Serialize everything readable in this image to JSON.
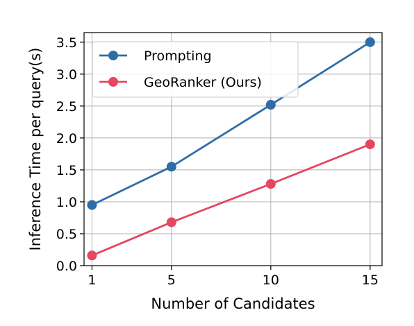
{
  "chart_data": {
    "type": "line",
    "xlabel": "Number of Candidates",
    "ylabel": "Inference Time per query(s)",
    "x": [
      1,
      5,
      10,
      15
    ],
    "xticks": [
      "1",
      "5",
      "10",
      "15"
    ],
    "yticks": [
      "0.0",
      "0.5",
      "1.0",
      "1.5",
      "2.0",
      "2.5",
      "3.0",
      "3.5"
    ],
    "ylim": [
      0,
      3.65
    ],
    "xlim": [
      0.6,
      15.6
    ],
    "grid": true,
    "legend_position": "top-left",
    "series": [
      {
        "name": "Prompting",
        "values": [
          0.95,
          1.55,
          2.52,
          3.5
        ],
        "color": "#2e6da8",
        "marker": "circle"
      },
      {
        "name": "GeoRanker (Ours)",
        "values": [
          0.16,
          0.68,
          1.28,
          1.9
        ],
        "color": "#e5475f",
        "marker": "circle"
      }
    ]
  }
}
